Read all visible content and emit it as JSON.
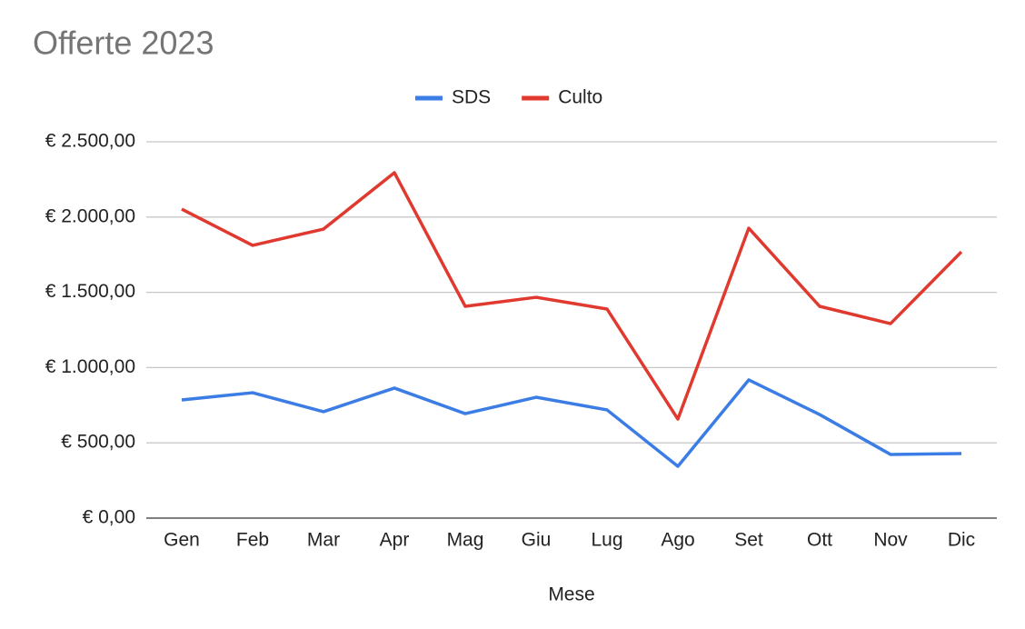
{
  "chart_data": {
    "type": "line",
    "title": "Offerte 2023",
    "x_label": "Mese",
    "categories": [
      "Gen",
      "Feb",
      "Mar",
      "Apr",
      "Mag",
      "Giu",
      "Lug",
      "Ago",
      "Set",
      "Ott",
      "Nov",
      "Dic"
    ],
    "series": [
      {
        "name": "SDS",
        "color": "#3b7de4",
        "values": [
          785,
          833,
          707,
          864,
          694,
          803,
          719,
          344,
          918,
          688,
          423,
          429
        ]
      },
      {
        "name": "Culto",
        "color": "#e0392f",
        "values": [
          2053,
          1812,
          1920,
          2295,
          1407,
          1467,
          1389,
          658,
          1926,
          1407,
          1292,
          1769
        ]
      }
    ],
    "ylim": [
      0,
      2500
    ],
    "yticks": [
      {
        "value": 0,
        "label": "€ 0,00"
      },
      {
        "value": 500,
        "label": "€ 500,00"
      },
      {
        "value": 1000,
        "label": "€ 1.000,00"
      },
      {
        "value": 1500,
        "label": "€ 1.500,00"
      },
      {
        "value": 2000,
        "label": "€ 2.000,00"
      },
      {
        "value": 2500,
        "label": "€ 2.500,00"
      }
    ],
    "grid": true,
    "legend": "top"
  }
}
